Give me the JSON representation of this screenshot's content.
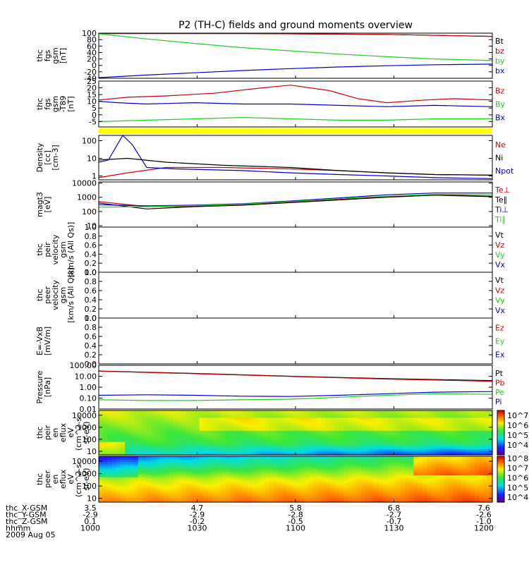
{
  "title": "P2 (TH-C) fields and ground moments overview",
  "chart_data": [
    {
      "type": "line",
      "ylabel": [
        "thc",
        "fgs",
        "gsm",
        "[nT]"
      ],
      "yticks": [
        "100",
        "80",
        "60",
        "40",
        "20",
        "0",
        "-20",
        "-40"
      ],
      "ylim": [
        -40,
        100
      ],
      "series": [
        {
          "name": "Bt",
          "color": "#000000",
          "x": [
            3.5,
            5.0,
            6.5,
            7.6
          ],
          "y": [
            99,
            99,
            96,
            90
          ]
        },
        {
          "name": "bz",
          "color": "#cc0000",
          "x": [
            3.5,
            5.0,
            6.5,
            7.6
          ],
          "y": [
            99,
            99,
            96,
            90
          ]
        },
        {
          "name": "by",
          "color": "#22cc22",
          "x": [
            3.5,
            4.0,
            4.5,
            5.0,
            5.5,
            6.0,
            6.5,
            7.0,
            7.6
          ],
          "y": [
            98,
            82,
            68,
            55,
            45,
            35,
            27,
            20,
            15
          ]
        },
        {
          "name": "bx",
          "color": "#0000cc",
          "x": [
            3.5,
            4.0,
            4.5,
            5.0,
            5.5,
            6.0,
            6.5,
            7.0,
            7.6
          ],
          "y": [
            -38,
            -30,
            -23,
            -16,
            -10,
            -5,
            -1,
            2,
            4
          ]
        }
      ]
    },
    {
      "type": "line",
      "ylabel": [
        "thc",
        "fgs",
        "gsm",
        "-T89",
        "[nT]"
      ],
      "yticks": [
        "25",
        "20",
        "15",
        "10",
        "5",
        "0",
        "-5"
      ],
      "ylim": [
        -9,
        25
      ],
      "series": [
        {
          "name": "Bz",
          "color": "#cc0000",
          "x": [
            3.5,
            3.8,
            4.2,
            4.7,
            5.2,
            5.5,
            5.9,
            6.2,
            6.5,
            6.9,
            7.2,
            7.6
          ],
          "y": [
            11,
            13,
            14,
            16,
            20,
            22,
            18,
            12,
            9,
            11,
            12,
            11
          ]
        },
        {
          "name": "By",
          "color": "#22cc22",
          "x": [
            3.5,
            4.0,
            4.5,
            5.0,
            5.5,
            6.0,
            6.5,
            7.0,
            7.6
          ],
          "y": [
            -5,
            -4,
            -3,
            -2,
            -3,
            -4,
            -4,
            -3,
            -3
          ]
        },
        {
          "name": "Bx",
          "color": "#0000cc",
          "x": [
            3.5,
            3.7,
            4.0,
            4.5,
            5.0,
            5.5,
            6.0,
            6.5,
            7.0,
            7.6
          ],
          "y": [
            10,
            9,
            8,
            9,
            8,
            8,
            7,
            6,
            7,
            6
          ]
        }
      ]
    },
    {
      "type": "line",
      "ylabel": [
        "Density",
        "[cc]",
        "[cm-3]"
      ],
      "yticks": [
        "100",
        "10",
        "1"
      ],
      "yscale": "log",
      "ylim": [
        0.6,
        200
      ],
      "series": [
        {
          "name": "Ne",
          "color": "#cc0000",
          "x": [
            3.5,
            3.8,
            4.2,
            4.8,
            5.5,
            6.0,
            6.5,
            7.0,
            7.6
          ],
          "y": [
            0.8,
            1.5,
            3,
            3,
            2.5,
            2,
            1.5,
            1.2,
            1.1
          ]
        },
        {
          "name": "Ni",
          "color": "#000000",
          "x": [
            3.5,
            3.8,
            4.2,
            4.8,
            5.5,
            6.0,
            6.5,
            7.0,
            7.6
          ],
          "y": [
            8,
            10,
            6,
            4,
            3,
            2,
            1.5,
            1.2,
            1.1
          ]
        },
        {
          "name": "Npot",
          "color": "#0000cc",
          "x": [
            3.5,
            3.6,
            3.75,
            3.85,
            4.0,
            4.3,
            5.0,
            5.5,
            6.0,
            6.5,
            7.0,
            7.6
          ],
          "y": [
            6,
            8,
            200,
            60,
            3,
            2.5,
            2,
            1.5,
            1.2,
            1,
            0.8,
            0.7
          ]
        }
      ]
    },
    {
      "type": "line",
      "ylabel": [
        "magt3",
        "[eV]"
      ],
      "yticks": [
        "10000",
        "1000",
        "100",
        "10"
      ],
      "yscale": "log",
      "ylim": [
        8,
        12000
      ],
      "series": [
        {
          "name": "Te⊥",
          "color": "#cc0000",
          "x": [
            3.5,
            4.0,
            4.5,
            5.0,
            5.5,
            6.0,
            6.5,
            7.0,
            7.6
          ],
          "y": [
            500,
            220,
            230,
            300,
            450,
            700,
            1100,
            1500,
            1200
          ]
        },
        {
          "name": "Te∥",
          "color": "#000000",
          "x": [
            3.5,
            4.0,
            4.5,
            5.0,
            5.5,
            6.0,
            6.5,
            7.0,
            7.6
          ],
          "y": [
            400,
            150,
            220,
            280,
            420,
            650,
            1000,
            1400,
            1100
          ]
        },
        {
          "name": "Ti⊥",
          "color": "#0000cc",
          "x": [
            3.5,
            4.0,
            4.5,
            5.0,
            5.5,
            6.0,
            6.5,
            7.0,
            7.6
          ],
          "y": [
            300,
            250,
            280,
            350,
            550,
            900,
            1500,
            2000,
            2000
          ]
        },
        {
          "name": "Ti∥",
          "color": "#22cc22",
          "x": [
            3.5,
            4.0,
            4.5,
            5.0,
            5.5,
            6.0,
            6.5,
            7.0,
            7.6
          ],
          "y": [
            200,
            220,
            260,
            330,
            500,
            800,
            1200,
            1600,
            1500
          ]
        }
      ]
    },
    {
      "type": "line",
      "ylabel": [
        "thc",
        "peir",
        "velocity",
        "gsm",
        "[km/s (All Qs)]"
      ],
      "yticks": [
        "1.0",
        "0.8",
        "0.6",
        "0.4",
        "0.2",
        "0.0"
      ],
      "ylim": [
        0,
        1
      ],
      "series": [
        {
          "name": "Vt",
          "color": "#000000",
          "x": [],
          "y": []
        },
        {
          "name": "Vz",
          "color": "#cc0000",
          "x": [],
          "y": []
        },
        {
          "name": "Vy",
          "color": "#22cc22",
          "x": [],
          "y": []
        },
        {
          "name": "Vx",
          "color": "#0000cc",
          "x": [],
          "y": []
        }
      ]
    },
    {
      "type": "line",
      "ylabel": [
        "thc",
        "peer",
        "velocity",
        "gsm",
        "[km/s (All Qs)]"
      ],
      "yticks": [
        "1.0",
        "0.8",
        "0.6",
        "0.4",
        "0.2",
        "0.0"
      ],
      "ylim": [
        0,
        1
      ],
      "series": [
        {
          "name": "Vt",
          "color": "#000000",
          "x": [],
          "y": []
        },
        {
          "name": "Vz",
          "color": "#cc0000",
          "x": [],
          "y": []
        },
        {
          "name": "Vy",
          "color": "#22cc22",
          "x": [],
          "y": []
        },
        {
          "name": "Vx",
          "color": "#0000cc",
          "x": [],
          "y": []
        }
      ]
    },
    {
      "type": "line",
      "ylabel": [
        "E=-VxB",
        "[mV/m]"
      ],
      "yticks": [
        "1.0",
        "0.8",
        "0.6",
        "0.4",
        "0.2",
        "0.0"
      ],
      "ylim": [
        0,
        1
      ],
      "series": [
        {
          "name": "Ez",
          "color": "#cc0000",
          "x": [],
          "y": []
        },
        {
          "name": "Ey",
          "color": "#22cc22",
          "x": [],
          "y": []
        },
        {
          "name": "Ex",
          "color": "#0000cc",
          "x": [],
          "y": []
        }
      ]
    },
    {
      "type": "line",
      "ylabel": [
        "Pressure",
        "[nPa]"
      ],
      "yticks": [
        "100.00",
        "10.00",
        "1.00",
        "0.10",
        "0.01"
      ],
      "yscale": "log",
      "ylim": [
        0.01,
        100
      ],
      "series": [
        {
          "name": "Pt",
          "color": "#000000",
          "x": [
            3.5,
            4.5,
            5.5,
            6.5,
            7.6
          ],
          "y": [
            30,
            18,
            10,
            6,
            4
          ]
        },
        {
          "name": "Pb",
          "color": "#cc0000",
          "x": [
            3.5,
            4.5,
            5.5,
            6.5,
            7.6
          ],
          "y": [
            29,
            17,
            9.5,
            5.5,
            3.5
          ]
        },
        {
          "name": "Pe",
          "color": "#22cc22",
          "x": [
            3.5,
            4.0,
            4.5,
            5.0,
            5.5,
            6.0,
            6.5,
            7.0,
            7.6
          ],
          "y": [
            0.07,
            0.06,
            0.06,
            0.07,
            0.08,
            0.12,
            0.18,
            0.25,
            0.22
          ]
        },
        {
          "name": "Pi",
          "color": "#0000cc",
          "x": [
            3.5,
            4.0,
            4.5,
            5.0,
            5.5,
            6.0,
            6.5,
            7.0,
            7.6
          ],
          "y": [
            0.18,
            0.2,
            0.18,
            0.15,
            0.14,
            0.18,
            0.25,
            0.35,
            0.4
          ]
        }
      ]
    },
    {
      "type": "heatmap",
      "ylabel": [
        "thc",
        "peir",
        "en",
        "eflux",
        "eV",
        "(cm^2-s-",
        "sr-eV)"
      ],
      "yticks": [
        "10000",
        "1000",
        "100",
        "10"
      ],
      "yscale": "log",
      "ylim": [
        5,
        25000
      ],
      "colorbar_ticks": [
        "10^7",
        "10^6",
        "10^5",
        "10^4"
      ],
      "colorbar_range_log10": [
        3,
        7.5
      ]
    },
    {
      "type": "heatmap",
      "ylabel": [
        "thc",
        "peer",
        "en",
        "eflux",
        "eV",
        "(cm^2-s-",
        "sr-eV)"
      ],
      "yticks": [
        "10000",
        "1000",
        "100",
        "10"
      ],
      "yscale": "log",
      "ylim": [
        5,
        25000
      ],
      "colorbar_ticks": [
        "10^8",
        "10^7",
        "10^6",
        "10^5",
        "10^4"
      ],
      "colorbar_range_log10": [
        3.5,
        8.2
      ]
    }
  ],
  "xaxis": {
    "rows": [
      {
        "label": "thc_X-GSM",
        "values": [
          "3.5",
          "4.7",
          "5.8",
          "6.8",
          "7.6"
        ]
      },
      {
        "label": "thc_Y-GSM",
        "values": [
          "-2.9",
          "-2.9",
          "-2.8",
          "-2.7",
          "-2.6"
        ]
      },
      {
        "label": "thc_Z-GSM",
        "values": [
          "0.1",
          "-0.2",
          "-0.5",
          "-0.7",
          "-1.0"
        ]
      },
      {
        "label": "hhmm",
        "values": [
          "1000",
          "1030",
          "1100",
          "1130",
          "1200"
        ]
      }
    ],
    "date": "2009 Aug 05",
    "time_min": [
      0,
      30,
      60,
      90,
      120
    ]
  }
}
